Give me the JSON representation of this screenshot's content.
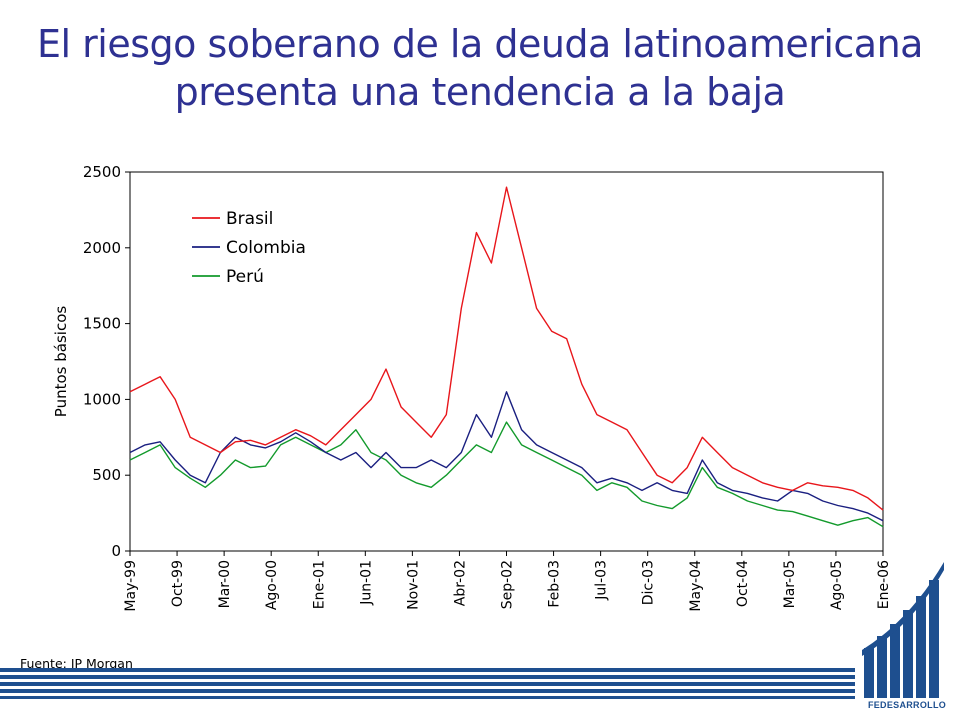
{
  "title": {
    "line1": "El riesgo soberano de la deuda latinoamericana",
    "line2": "presenta una tendencia a la baja"
  },
  "source": "Fuente: JP Morgan",
  "logo_text": "FEDESARROLLO",
  "colors": {
    "title": "#2e3192",
    "brasil": "#e8161b",
    "colombia": "#1a1f80",
    "peru": "#139a2c",
    "brand": "#1e4f8f"
  },
  "chart_data": {
    "type": "line",
    "ylabel": "Puntos básicos",
    "xlabel": "",
    "ylim": [
      0,
      2500
    ],
    "yticks": [
      0,
      500,
      1000,
      1500,
      2000,
      2500
    ],
    "xticks": [
      "May-99",
      "Oct-99",
      "Mar-00",
      "Ago-00",
      "Ene-01",
      "Jun-01",
      "Nov-01",
      "Abr-02",
      "Sep-02",
      "Feb-03",
      "Jul-03",
      "Dic-03",
      "May-04",
      "Oct-04",
      "Mar-05",
      "Ago-05",
      "Ene-06"
    ],
    "legend": "top-left",
    "grid": false,
    "x": [
      "May-99",
      "Jul-99",
      "Sep-99",
      "Oct-99",
      "Dic-99",
      "Feb-00",
      "Mar-00",
      "Abr-00",
      "Jun-00",
      "Ago-00",
      "Oct-00",
      "Dic-00",
      "Ene-01",
      "Mar-01",
      "May-01",
      "Jun-01",
      "Ago-01",
      "Sep-01",
      "Nov-01",
      "Ene-02",
      "Mar-02",
      "Abr-02",
      "Jun-02",
      "Jul-02",
      "Ago-02",
      "Sep-02",
      "Oct-02",
      "Nov-02",
      "Dic-02",
      "Feb-03",
      "Abr-03",
      "May-03",
      "Jul-03",
      "Sep-03",
      "Oct-03",
      "Dic-03",
      "Feb-04",
      "Abr-04",
      "May-04",
      "Jul-04",
      "Sep-04",
      "Oct-04",
      "Dic-04",
      "Feb-05",
      "Mar-05",
      "May-05",
      "Jul-05",
      "Ago-05",
      "Oct-05",
      "Dic-05",
      "Ene-06"
    ],
    "series": [
      {
        "name": "Brasil",
        "values": [
          1050,
          1100,
          1150,
          1000,
          750,
          700,
          650,
          720,
          730,
          700,
          750,
          800,
          760,
          700,
          800,
          900,
          1000,
          1200,
          950,
          850,
          750,
          900,
          1600,
          2100,
          1900,
          2400,
          2000,
          1600,
          1450,
          1400,
          1100,
          900,
          850,
          800,
          650,
          500,
          450,
          550,
          750,
          650,
          550,
          500,
          450,
          420,
          400,
          450,
          430,
          420,
          400,
          350,
          270
        ]
      },
      {
        "name": "Colombia",
        "values": [
          650,
          700,
          720,
          600,
          500,
          450,
          650,
          750,
          700,
          680,
          720,
          780,
          720,
          650,
          600,
          650,
          550,
          650,
          550,
          550,
          600,
          550,
          650,
          900,
          750,
          1050,
          800,
          700,
          650,
          600,
          550,
          450,
          480,
          450,
          400,
          450,
          400,
          380,
          600,
          450,
          400,
          380,
          350,
          330,
          400,
          380,
          330,
          300,
          280,
          250,
          200
        ]
      },
      {
        "name": "Perú",
        "values": [
          600,
          650,
          700,
          550,
          480,
          420,
          500,
          600,
          550,
          560,
          700,
          750,
          700,
          650,
          700,
          800,
          650,
          600,
          500,
          450,
          420,
          500,
          600,
          700,
          650,
          850,
          700,
          650,
          600,
          550,
          500,
          400,
          450,
          420,
          330,
          300,
          280,
          350,
          550,
          420,
          380,
          330,
          300,
          270,
          260,
          230,
          200,
          170,
          200,
          220,
          160
        ]
      }
    ]
  }
}
